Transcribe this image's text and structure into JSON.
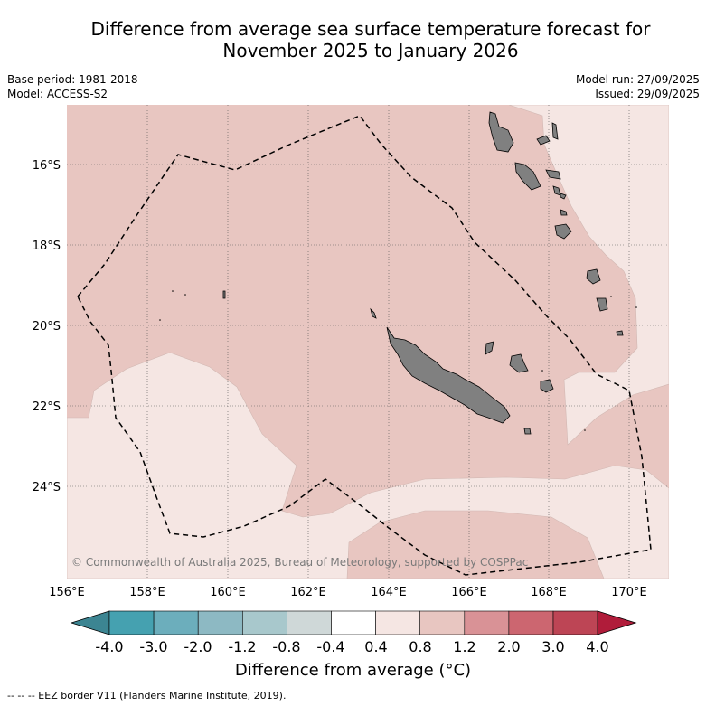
{
  "title": {
    "line1": "Difference from average sea surface temperature forecast for",
    "line2": "November 2025 to January 2026"
  },
  "meta": {
    "base_period": "Base period: 1981-2018",
    "model": "Model: ACCESS-S2",
    "model_run": "Model run: 27/09/2025",
    "issued": "Issued: 29/09/2025"
  },
  "map": {
    "lat_labels": [
      "16°S",
      "18°S",
      "20°S",
      "22°S",
      "24°S"
    ],
    "lon_labels": [
      "156°E",
      "158°E",
      "160°E",
      "162°E",
      "164°E",
      "166°E",
      "168°E",
      "170°E"
    ],
    "copyright": "© Commonwealth of Australia 2025, Bureau of Meteorology, supported by COSPPac",
    "colors": {
      "anomaly_0_4_to_0_8": "#f5e6e3",
      "anomaly_0_8_to_1_2": "#e8c6c1",
      "land": "#808080",
      "ocean_background": "#e8c6c1"
    }
  },
  "colorbar": {
    "ticks": [
      "-4.0",
      "-3.0",
      "-2.0",
      "-1.2",
      "-0.8",
      "-0.4",
      "0.4",
      "0.8",
      "1.2",
      "2.0",
      "3.0",
      "4.0"
    ],
    "bins": [
      {
        "label": "below -4.0",
        "color": "#3c8592"
      },
      {
        "label": "-4.0 to -3.0",
        "color": "#45a1b0"
      },
      {
        "label": "-3.0 to -2.0",
        "color": "#6caebc"
      },
      {
        "label": "-2.0 to -1.2",
        "color": "#8db9c3"
      },
      {
        "label": "-1.2 to -0.8",
        "color": "#a8c8cc"
      },
      {
        "label": "-0.8 to -0.4",
        "color": "#cfd8d8"
      },
      {
        "label": "-0.4 to 0.4",
        "color": "#ffffff"
      },
      {
        "label": "0.4 to 0.8",
        "color": "#f5e6e3"
      },
      {
        "label": "0.8 to 1.2",
        "color": "#e8c6c1"
      },
      {
        "label": "1.2 to 2.0",
        "color": "#d99296"
      },
      {
        "label": "2.0 to 3.0",
        "color": "#cc6670"
      },
      {
        "label": "3.0 to 4.0",
        "color": "#bd4555"
      },
      {
        "label": "above 4.0",
        "color": "#b01c3a"
      }
    ],
    "title": "Difference from average (°C)"
  },
  "legend": {
    "eez": "-- -- -- EEZ border V11 (Flanders Marine Institute, 2019)."
  }
}
